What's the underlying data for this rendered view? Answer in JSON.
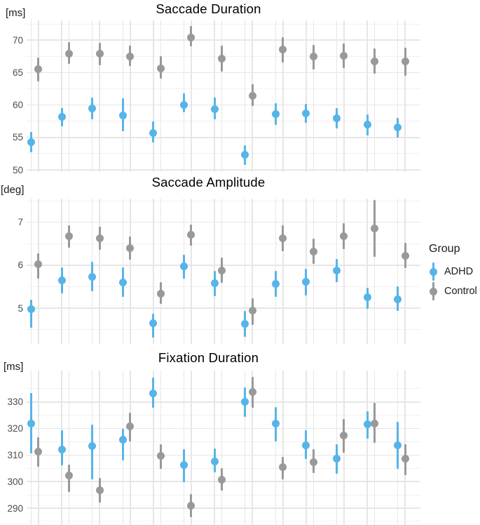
{
  "colors": {
    "adhd": "#56B4E9",
    "control": "#999999",
    "grid_major": "#E6E6E6",
    "grid_minor": "#F1F1F1",
    "tick_label": "#4D4D4D",
    "title_text": "#000000",
    "background": "#FFFFFF"
  },
  "legend": {
    "title": "Group",
    "position": "right",
    "items": [
      {
        "label": "ADHD",
        "color": "#56B4E9"
      },
      {
        "label": "Control",
        "color": "#999999"
      }
    ]
  },
  "chart_data": [
    {
      "type": "scatter",
      "title": "Saccade Duration",
      "ylabel": "[ms]",
      "xlabel": "",
      "yticks": [
        50,
        55,
        60,
        65,
        70
      ],
      "ylim": [
        49.7,
        73.0
      ],
      "x": [
        1,
        2,
        3,
        4,
        5,
        6,
        7,
        8,
        9,
        10,
        11,
        12,
        13
      ],
      "x_tick_labels": [],
      "grid": true,
      "error_bars": true,
      "series": [
        {
          "name": "ADHD",
          "color": "#56B4E9",
          "values": [
            54.3,
            58.2,
            59.5,
            58.4,
            55.7,
            60.0,
            59.4,
            52.3,
            58.6,
            58.7,
            58.0,
            57.0,
            56.5
          ],
          "ci_low": [
            52.7,
            56.7,
            57.8,
            55.9,
            54.2,
            58.9,
            57.8,
            50.8,
            56.9,
            57.2,
            56.4,
            55.3,
            55.0
          ],
          "ci_high": [
            55.8,
            59.5,
            61.2,
            61.0,
            57.5,
            61.8,
            61.2,
            53.8,
            60.3,
            60.2,
            59.5,
            58.6,
            58.0
          ]
        },
        {
          "name": "Control",
          "color": "#999999",
          "values": [
            65.5,
            67.9,
            67.9,
            67.5,
            65.6,
            70.4,
            67.2,
            61.4,
            68.6,
            67.5,
            67.6,
            66.7,
            66.7
          ],
          "ci_low": [
            63.6,
            66.3,
            66.1,
            66.0,
            64.1,
            69.0,
            65.2,
            59.8,
            66.6,
            65.5,
            65.7,
            64.8,
            64.5
          ],
          "ci_high": [
            67.3,
            69.7,
            69.6,
            69.2,
            67.5,
            72.2,
            69.2,
            63.2,
            70.5,
            69.3,
            69.5,
            68.7,
            68.8
          ]
        }
      ]
    },
    {
      "type": "scatter",
      "title": "Saccade Amplitude",
      "ylabel": "[deg]",
      "xlabel": "",
      "yticks": [
        5,
        6,
        7
      ],
      "ylim": [
        4.17,
        7.55
      ],
      "x": [
        1,
        2,
        3,
        4,
        5,
        6,
        7,
        8,
        9,
        10,
        11,
        12,
        13
      ],
      "x_tick_labels": [],
      "grid": true,
      "error_bars": true,
      "series": [
        {
          "name": "ADHD",
          "color": "#56B4E9",
          "values": [
            4.97,
            5.65,
            5.72,
            5.6,
            4.65,
            5.97,
            5.58,
            4.64,
            5.57,
            5.61,
            5.88,
            5.25,
            5.21
          ],
          "ci_low": [
            4.55,
            5.34,
            5.39,
            5.26,
            4.32,
            5.69,
            5.28,
            4.33,
            5.26,
            5.3,
            5.61,
            4.98,
            4.93
          ],
          "ci_high": [
            5.2,
            5.94,
            6.08,
            5.94,
            4.87,
            6.24,
            5.87,
            4.93,
            5.86,
            5.92,
            6.15,
            5.47,
            5.5
          ]
        },
        {
          "name": "Control",
          "color": "#999999",
          "values": [
            6.02,
            6.68,
            6.63,
            6.4,
            5.34,
            6.7,
            5.87,
            4.94,
            6.63,
            6.32,
            6.67,
            6.85,
            6.22
          ],
          "ci_low": [
            5.69,
            6.4,
            6.35,
            6.13,
            5.09,
            6.46,
            5.59,
            4.6,
            6.32,
            6.03,
            6.37,
            6.2,
            5.93
          ],
          "ci_high": [
            6.27,
            6.92,
            6.89,
            6.67,
            5.6,
            6.95,
            6.18,
            5.23,
            6.92,
            6.62,
            6.98,
            7.52,
            6.52
          ]
        }
      ]
    },
    {
      "type": "scatter",
      "title": "Fixation Duration",
      "ylabel": "[ms]",
      "xlabel": "",
      "yticks": [
        290,
        300,
        310,
        320,
        330
      ],
      "ylim": [
        283.6,
        341.9
      ],
      "x": [
        1,
        2,
        3,
        4,
        5,
        6,
        7,
        8,
        9,
        10,
        11,
        12,
        13
      ],
      "x_tick_labels": [],
      "grid": true,
      "error_bars": true,
      "series": [
        {
          "name": "ADHD",
          "color": "#56B4E9",
          "values": [
            322.0,
            312.0,
            313.5,
            315.9,
            333.3,
            306.3,
            307.6,
            330.1,
            321.8,
            313.8,
            308.6,
            321.5,
            313.8
          ],
          "ci_low": [
            310.7,
            306.1,
            300.8,
            308.1,
            327.7,
            299.8,
            303.6,
            324.4,
            315.1,
            308.5,
            302.9,
            316.1,
            304.8
          ],
          "ci_high": [
            333.5,
            319.4,
            321.6,
            320.0,
            339.2,
            312.3,
            312.4,
            335.4,
            328.2,
            319.4,
            314.2,
            326.5,
            322.5
          ]
        },
        {
          "name": "Control",
          "color": "#999999",
          "values": [
            311.2,
            302.3,
            296.7,
            320.7,
            309.6,
            291.0,
            300.6,
            333.9,
            305.6,
            307.2,
            317.3,
            321.9,
            308.7
          ],
          "ci_low": [
            305.5,
            296.0,
            292.0,
            315.1,
            304.9,
            286.5,
            296.7,
            327.9,
            300.9,
            303.1,
            310.9,
            314.5,
            302.4
          ],
          "ci_high": [
            316.6,
            306.5,
            301.4,
            326.0,
            314.0,
            295.3,
            305.1,
            339.4,
            309.3,
            312.1,
            323.6,
            329.6,
            314.2
          ]
        }
      ]
    }
  ]
}
